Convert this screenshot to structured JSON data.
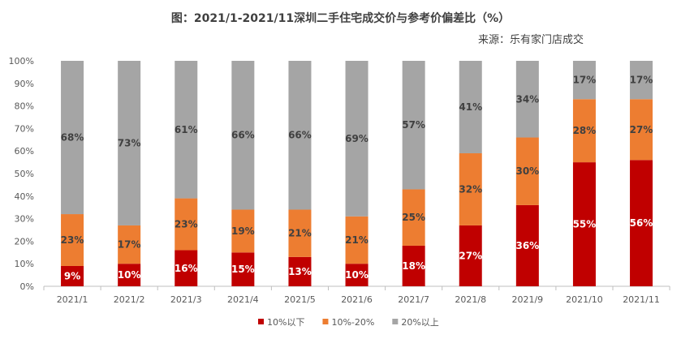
{
  "chart_data": {
    "type": "bar",
    "stacked": true,
    "title": "图：2021/1-2021/11深圳二手住宅成交价与参考价偏差比（%）",
    "source": "来源：乐有家门店成交",
    "categories": [
      "2021/1",
      "2021/2",
      "2021/3",
      "2021/4",
      "2021/5",
      "2021/6",
      "2021/7",
      "2021/8",
      "2021/9",
      "2021/10",
      "2021/11"
    ],
    "series": [
      {
        "name": "10%以下",
        "color": "#C00000",
        "label_color": "#FFFFFF",
        "values": [
          9,
          10,
          16,
          15,
          13,
          10,
          18,
          27,
          36,
          55,
          56
        ]
      },
      {
        "name": "10%-20%",
        "color": "#ED7D31",
        "label_color": "#404040",
        "values": [
          23,
          17,
          23,
          19,
          21,
          21,
          25,
          32,
          30,
          28,
          27
        ]
      },
      {
        "name": "20%以上",
        "color": "#A5A5A5",
        "label_color": "#404040",
        "values": [
          68,
          73,
          61,
          66,
          66,
          69,
          57,
          41,
          34,
          17,
          17
        ]
      }
    ],
    "yticks": [
      "0%",
      "10%",
      "20%",
      "30%",
      "40%",
      "50%",
      "60%",
      "70%",
      "80%",
      "90%",
      "100%"
    ],
    "ylim": [
      0,
      100
    ],
    "grid": false,
    "legend": "bottom",
    "watermark": "乐有家"
  }
}
